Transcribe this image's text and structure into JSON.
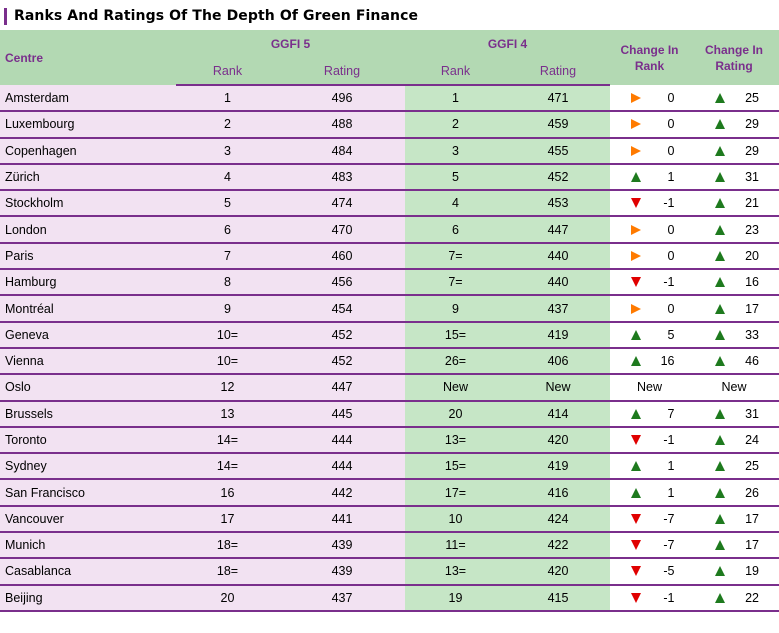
{
  "title": "Ranks And Ratings Of The Depth Of Green Finance",
  "colors": {
    "header_bg": "#b3d9b3",
    "header_text": "#7a2f8c",
    "row_pink": "#f2e2f2",
    "row_green": "#c6e6c6",
    "up": "#1e7a1e",
    "down": "#e00000",
    "same": "#ff7a00"
  },
  "headers": {
    "centre": "Centre",
    "ggfi5": "GGFI 5",
    "ggfi4": "GGFI 4",
    "rank": "Rank",
    "rating": "Rating",
    "change_rank": "Change In Rank",
    "change_rating": "Change In Rating"
  },
  "rows": [
    {
      "centre": "Amsterdam",
      "rank5": "1",
      "rating5": "496",
      "rank4": "1",
      "rating4": "471",
      "ch_rank_icon": "same",
      "ch_rank": "0",
      "ch_rating_icon": "up",
      "ch_rating": "25"
    },
    {
      "centre": "Luxembourg",
      "rank5": "2",
      "rating5": "488",
      "rank4": "2",
      "rating4": "459",
      "ch_rank_icon": "same",
      "ch_rank": "0",
      "ch_rating_icon": "up",
      "ch_rating": "29"
    },
    {
      "centre": "Copenhagen",
      "rank5": "3",
      "rating5": "484",
      "rank4": "3",
      "rating4": "455",
      "ch_rank_icon": "same",
      "ch_rank": "0",
      "ch_rating_icon": "up",
      "ch_rating": "29"
    },
    {
      "centre": "Zürich",
      "rank5": "4",
      "rating5": "483",
      "rank4": "5",
      "rating4": "452",
      "ch_rank_icon": "up",
      "ch_rank": "1",
      "ch_rating_icon": "up",
      "ch_rating": "31"
    },
    {
      "centre": "Stockholm",
      "rank5": "5",
      "rating5": "474",
      "rank4": "4",
      "rating4": "453",
      "ch_rank_icon": "down",
      "ch_rank": "-1",
      "ch_rating_icon": "up",
      "ch_rating": "21"
    },
    {
      "centre": "London",
      "rank5": "6",
      "rating5": "470",
      "rank4": "6",
      "rating4": "447",
      "ch_rank_icon": "same",
      "ch_rank": "0",
      "ch_rating_icon": "up",
      "ch_rating": "23"
    },
    {
      "centre": "Paris",
      "rank5": "7",
      "rating5": "460",
      "rank4": "7=",
      "rating4": "440",
      "ch_rank_icon": "same",
      "ch_rank": "0",
      "ch_rating_icon": "up",
      "ch_rating": "20"
    },
    {
      "centre": "Hamburg",
      "rank5": "8",
      "rating5": "456",
      "rank4": "7=",
      "rating4": "440",
      "ch_rank_icon": "down",
      "ch_rank": "-1",
      "ch_rating_icon": "up",
      "ch_rating": "16"
    },
    {
      "centre": "Montréal",
      "rank5": "9",
      "rating5": "454",
      "rank4": "9",
      "rating4": "437",
      "ch_rank_icon": "same",
      "ch_rank": "0",
      "ch_rating_icon": "up",
      "ch_rating": "17"
    },
    {
      "centre": "Geneva",
      "rank5": "10=",
      "rating5": "452",
      "rank4": "15=",
      "rating4": "419",
      "ch_rank_icon": "up",
      "ch_rank": "5",
      "ch_rating_icon": "up",
      "ch_rating": "33"
    },
    {
      "centre": "Vienna",
      "rank5": "10=",
      "rating5": "452",
      "rank4": "26=",
      "rating4": "406",
      "ch_rank_icon": "up",
      "ch_rank": "16",
      "ch_rating_icon": "up",
      "ch_rating": "46"
    },
    {
      "centre": "Oslo",
      "rank5": "12",
      "rating5": "447",
      "rank4": "New",
      "rating4": "New",
      "ch_rank_icon": "none",
      "ch_rank": "New",
      "ch_rating_icon": "none",
      "ch_rating": "New"
    },
    {
      "centre": "Brussels",
      "rank5": "13",
      "rating5": "445",
      "rank4": "20",
      "rating4": "414",
      "ch_rank_icon": "up",
      "ch_rank": "7",
      "ch_rating_icon": "up",
      "ch_rating": "31"
    },
    {
      "centre": "Toronto",
      "rank5": "14=",
      "rating5": "444",
      "rank4": "13=",
      "rating4": "420",
      "ch_rank_icon": "down",
      "ch_rank": "-1",
      "ch_rating_icon": "up",
      "ch_rating": "24"
    },
    {
      "centre": "Sydney",
      "rank5": "14=",
      "rating5": "444",
      "rank4": "15=",
      "rating4": "419",
      "ch_rank_icon": "up",
      "ch_rank": "1",
      "ch_rating_icon": "up",
      "ch_rating": "25"
    },
    {
      "centre": "San Francisco",
      "rank5": "16",
      "rating5": "442",
      "rank4": "17=",
      "rating4": "416",
      "ch_rank_icon": "up",
      "ch_rank": "1",
      "ch_rating_icon": "up",
      "ch_rating": "26"
    },
    {
      "centre": "Vancouver",
      "rank5": "17",
      "rating5": "441",
      "rank4": "10",
      "rating4": "424",
      "ch_rank_icon": "down",
      "ch_rank": "-7",
      "ch_rating_icon": "up",
      "ch_rating": "17"
    },
    {
      "centre": "Munich",
      "rank5": "18=",
      "rating5": "439",
      "rank4": "11=",
      "rating4": "422",
      "ch_rank_icon": "down",
      "ch_rank": "-7",
      "ch_rating_icon": "up",
      "ch_rating": "17"
    },
    {
      "centre": "Casablanca",
      "rank5": "18=",
      "rating5": "439",
      "rank4": "13=",
      "rating4": "420",
      "ch_rank_icon": "down",
      "ch_rank": "-5",
      "ch_rating_icon": "up",
      "ch_rating": "19"
    },
    {
      "centre": "Beijing",
      "rank5": "20",
      "rating5": "437",
      "rank4": "19",
      "rating4": "415",
      "ch_rank_icon": "down",
      "ch_rank": "-1",
      "ch_rating_icon": "up",
      "ch_rating": "22"
    }
  ]
}
